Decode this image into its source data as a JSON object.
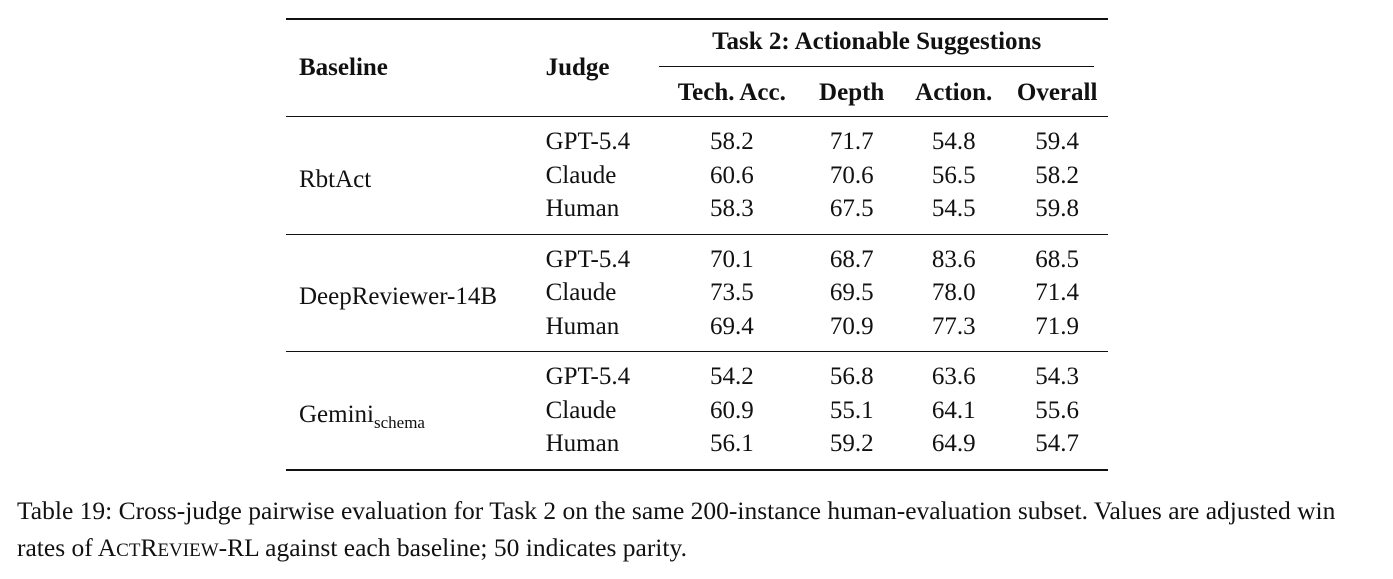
{
  "table": {
    "headers": {
      "baseline": "Baseline",
      "judge": "Judge",
      "task": "Task 2: Actionable Suggestions",
      "metrics": [
        "Tech. Acc.",
        "Depth",
        "Action.",
        "Overall"
      ]
    },
    "groups": [
      {
        "baseline": "RbtAct",
        "baseline_sub": "",
        "rows": [
          {
            "judge": "GPT-5.4",
            "values": [
              "58.2",
              "71.7",
              "54.8",
              "59.4"
            ]
          },
          {
            "judge": "Claude",
            "values": [
              "60.6",
              "70.6",
              "56.5",
              "58.2"
            ]
          },
          {
            "judge": "Human",
            "values": [
              "58.3",
              "67.5",
              "54.5",
              "59.8"
            ]
          }
        ]
      },
      {
        "baseline": "DeepReviewer-14B",
        "baseline_sub": "",
        "rows": [
          {
            "judge": "GPT-5.4",
            "values": [
              "70.1",
              "68.7",
              "83.6",
              "68.5"
            ]
          },
          {
            "judge": "Claude",
            "values": [
              "73.5",
              "69.5",
              "78.0",
              "71.4"
            ]
          },
          {
            "judge": "Human",
            "values": [
              "69.4",
              "70.9",
              "77.3",
              "71.9"
            ]
          }
        ]
      },
      {
        "baseline": "Gemini",
        "baseline_sub": "schema",
        "rows": [
          {
            "judge": "GPT-5.4",
            "values": [
              "54.2",
              "56.8",
              "63.6",
              "54.3"
            ]
          },
          {
            "judge": "Claude",
            "values": [
              "60.9",
              "55.1",
              "64.1",
              "55.6"
            ]
          },
          {
            "judge": "Human",
            "values": [
              "56.1",
              "59.2",
              "64.9",
              "54.7"
            ]
          }
        ]
      }
    ]
  },
  "caption": {
    "prefix": "Table 19: Cross-judge pairwise evaluation for Task 2 on the same 200-instance human-evaluation subset. Values are adjusted win rates of ",
    "method_parts": [
      {
        "text": "A",
        "size": "big"
      },
      {
        "text": "CT",
        "size": "small"
      },
      {
        "text": "R",
        "size": "big"
      },
      {
        "text": "EVIEW",
        "size": "small"
      },
      {
        "text": "-RL",
        "size": "big"
      }
    ],
    "suffix": " against each baseline; 50 indicates parity."
  }
}
